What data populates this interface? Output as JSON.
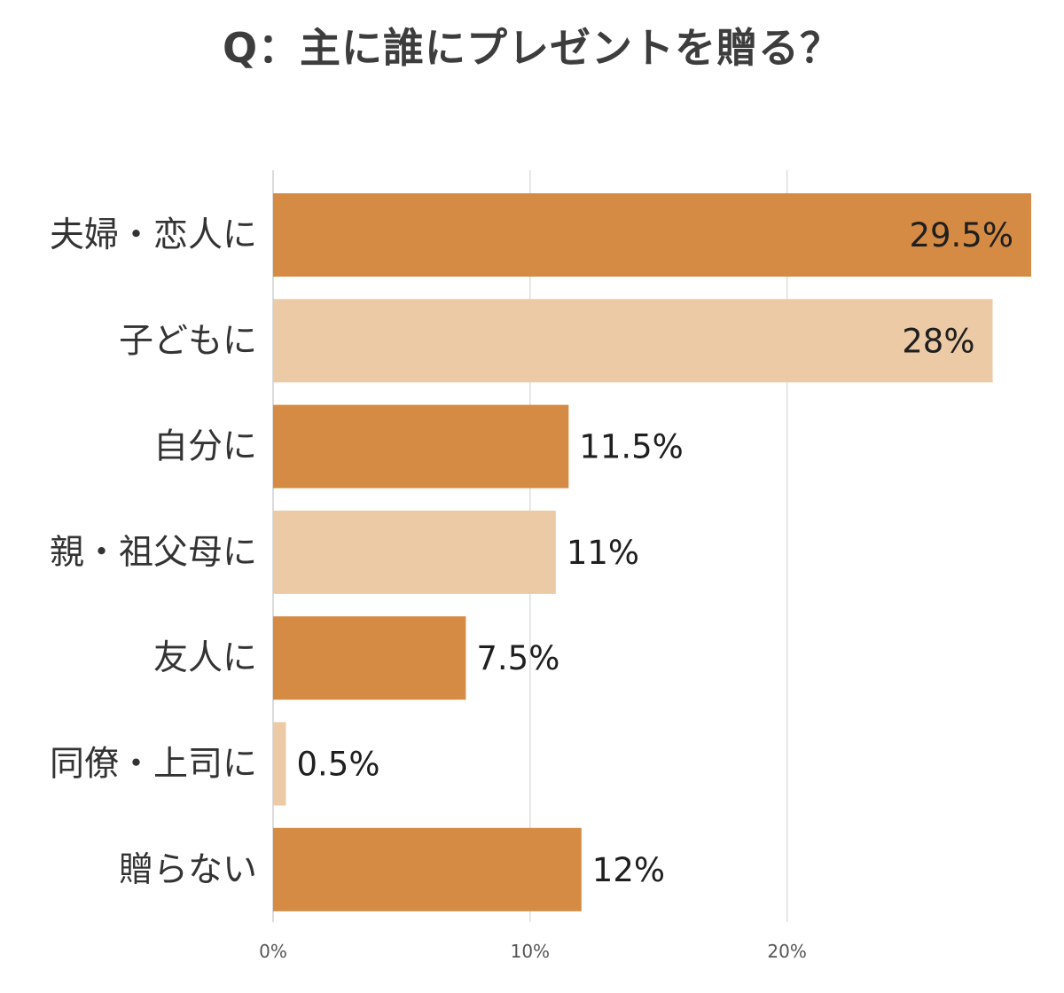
{
  "chart_data": {
    "type": "bar",
    "orientation": "horizontal",
    "title": "Q：主に誰にプレゼントを贈る？",
    "categories": [
      "夫婦・恋人に",
      "子どもに",
      "自分に",
      "親・祖父母に",
      "友人に",
      "同僚・上司に",
      "贈らない"
    ],
    "values": [
      29.5,
      28,
      11.5,
      11,
      7.5,
      0.5,
      12
    ],
    "value_labels": [
      "29.5%",
      "28%",
      "11.5%",
      "11%",
      "7.5%",
      "0.5%",
      "12%"
    ],
    "bar_colors": [
      "#d58b43",
      "#eccaa5",
      "#d58b43",
      "#eccaa5",
      "#d58b43",
      "#eccaa5",
      "#d58b43"
    ],
    "label_inside": [
      true,
      true,
      false,
      false,
      false,
      false,
      false
    ],
    "x_ticks": [
      0,
      10,
      20
    ],
    "x_tick_labels": [
      "0%",
      "10%",
      "20%"
    ],
    "xlim": [
      0,
      29.5
    ],
    "grid": true,
    "legend": "none"
  }
}
